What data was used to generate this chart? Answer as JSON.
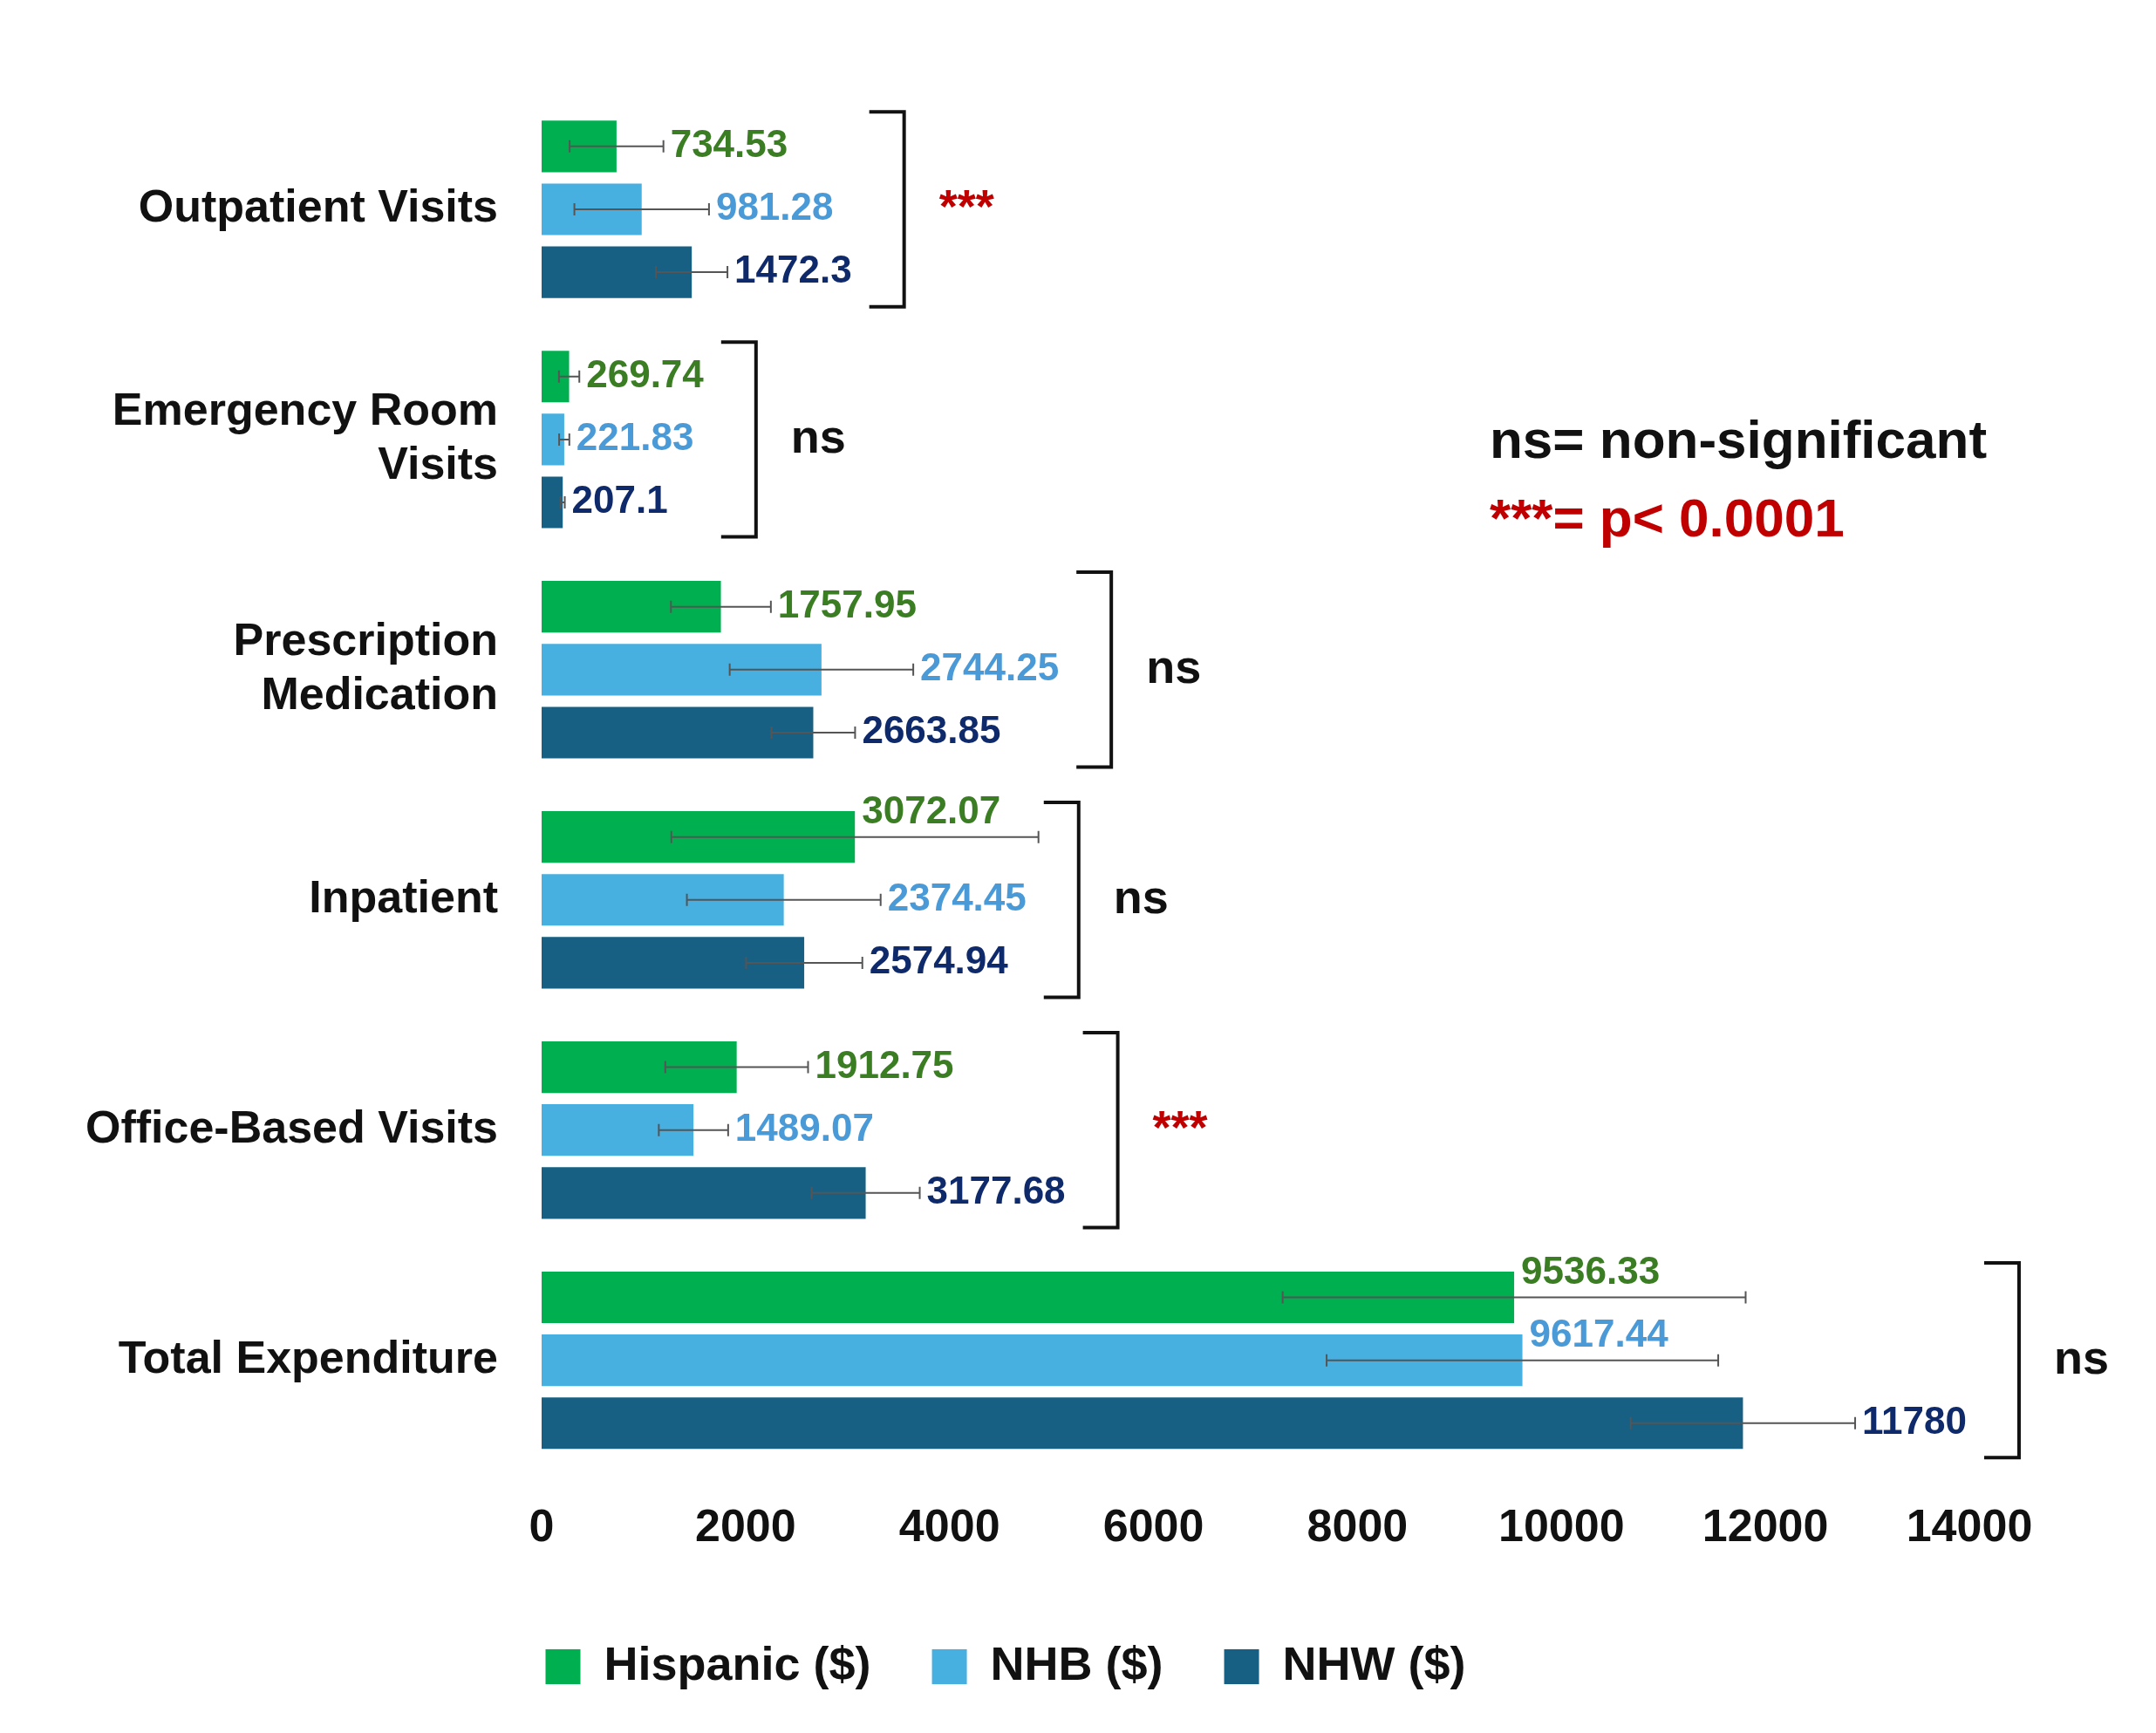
{
  "chart_data": {
    "type": "bar",
    "orientation": "horizontal",
    "categories": [
      "Outpatient Visits",
      "Emergency Room Visits",
      "Prescription Medication",
      "Inpatient",
      "Office-Based Visits",
      "Total Expenditure"
    ],
    "series": [
      {
        "name": "Hispanic ($)",
        "color": "#00b050",
        "values": [
          734.53,
          269.74,
          1757.95,
          3072.07,
          1912.75,
          9536.33
        ],
        "errors": [
          460,
          100,
          490,
          1800,
          700,
          2270
        ]
      },
      {
        "name": "NHB ($)",
        "color": "#47b0e0",
        "values": [
          981.28,
          221.83,
          2744.25,
          2374.45,
          1489.07,
          9617.44
        ],
        "errors": [
          660,
          50,
          900,
          950,
          340,
          1920
        ]
      },
      {
        "name": "NHW ($)",
        "color": "#176084",
        "values": [
          1472.3,
          207.1,
          2663.85,
          2574.94,
          3177.68,
          11780
        ],
        "errors": [
          350,
          20,
          410,
          570,
          530,
          1100
        ]
      }
    ],
    "xlim": [
      0,
      14000
    ],
    "xticks": [
      0,
      2000,
      4000,
      6000,
      8000,
      10000,
      12000,
      14000
    ],
    "grid": false,
    "legend": "bottom",
    "data_labels": true,
    "annotations": [
      "***",
      "ns",
      "ns",
      "ns",
      "***",
      "ns",
      "ns= non-significant",
      "***= p< 0.0001"
    ]
  }
}
